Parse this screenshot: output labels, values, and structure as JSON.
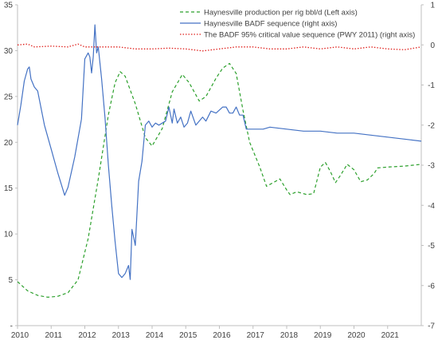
{
  "chart_data": {
    "type": "line",
    "x_axis": {
      "ticks": [
        "2010",
        "2011",
        "2012",
        "2013",
        "2014",
        "2015",
        "2016",
        "2017",
        "2018",
        "2019",
        "2020",
        "2021"
      ],
      "range": [
        2010,
        2022
      ]
    },
    "left_axis": {
      "ticks": [
        "35",
        "30",
        "25",
        "20",
        "15",
        "10",
        "5",
        "-"
      ],
      "range": [
        0,
        35
      ]
    },
    "right_axis": {
      "ticks": [
        "1",
        "0",
        "-1",
        "-2",
        "-3",
        "-4",
        "-5",
        "-6",
        "-7"
      ],
      "range": [
        -7,
        1
      ]
    },
    "grid": false,
    "legend_position": "top-right",
    "series": [
      {
        "name": "Haynesville production per rig bbl/d (Left axis)",
        "axis": "left",
        "color": "#2ca02c",
        "dash": "dashed",
        "points": [
          [
            2010.0,
            4.8
          ],
          [
            2010.3,
            3.8
          ],
          [
            2010.6,
            3.3
          ],
          [
            2010.9,
            3.1
          ],
          [
            2011.2,
            3.2
          ],
          [
            2011.5,
            3.6
          ],
          [
            2011.8,
            5.0
          ],
          [
            2012.1,
            9.5
          ],
          [
            2012.4,
            16.0
          ],
          [
            2012.7,
            23.0
          ],
          [
            2012.9,
            26.5
          ],
          [
            2013.05,
            27.7
          ],
          [
            2013.2,
            27.2
          ],
          [
            2013.5,
            24.2
          ],
          [
            2013.8,
            20.5
          ],
          [
            2014.0,
            19.6
          ],
          [
            2014.3,
            21.5
          ],
          [
            2014.6,
            25.5
          ],
          [
            2014.9,
            27.4
          ],
          [
            2015.1,
            26.5
          ],
          [
            2015.4,
            24.5
          ],
          [
            2015.6,
            25.0
          ],
          [
            2015.9,
            27.0
          ],
          [
            2016.1,
            28.1
          ],
          [
            2016.3,
            28.6
          ],
          [
            2016.5,
            27.5
          ],
          [
            2016.7,
            23.5
          ],
          [
            2016.9,
            20.0
          ],
          [
            2017.2,
            17.3
          ],
          [
            2017.4,
            15.2
          ],
          [
            2017.6,
            15.6
          ],
          [
            2017.8,
            16.0
          ],
          [
            2018.0,
            14.8
          ],
          [
            2018.1,
            14.3
          ],
          [
            2018.3,
            14.6
          ],
          [
            2018.6,
            14.3
          ],
          [
            2018.8,
            14.4
          ],
          [
            2019.0,
            17.3
          ],
          [
            2019.15,
            17.8
          ],
          [
            2019.3,
            16.8
          ],
          [
            2019.45,
            15.6
          ],
          [
            2019.6,
            16.4
          ],
          [
            2019.8,
            17.6
          ],
          [
            2020.0,
            17.0
          ],
          [
            2020.2,
            15.7
          ],
          [
            2020.4,
            15.9
          ],
          [
            2020.6,
            16.6
          ],
          [
            2020.7,
            17.2
          ],
          [
            2021.0,
            17.3
          ],
          [
            2021.5,
            17.4
          ],
          [
            2022.0,
            17.6
          ]
        ]
      },
      {
        "name": "Haynesville BADF sequence (right axis)",
        "axis": "right",
        "color": "#4472c4",
        "dash": "solid",
        "points": [
          [
            2010.0,
            -2.0
          ],
          [
            2010.1,
            -1.5
          ],
          [
            2010.2,
            -0.9
          ],
          [
            2010.3,
            -0.6
          ],
          [
            2010.35,
            -0.55
          ],
          [
            2010.4,
            -0.85
          ],
          [
            2010.5,
            -1.05
          ],
          [
            2010.6,
            -1.15
          ],
          [
            2010.8,
            -2.0
          ],
          [
            2011.0,
            -2.6
          ],
          [
            2011.2,
            -3.2
          ],
          [
            2011.4,
            -3.75
          ],
          [
            2011.5,
            -3.55
          ],
          [
            2011.7,
            -2.8
          ],
          [
            2011.9,
            -1.85
          ],
          [
            2012.0,
            -0.35
          ],
          [
            2012.1,
            -0.2
          ],
          [
            2012.15,
            -0.3
          ],
          [
            2012.2,
            -0.7
          ],
          [
            2012.25,
            -0.3
          ],
          [
            2012.3,
            0.5
          ],
          [
            2012.35,
            -0.2
          ],
          [
            2012.4,
            -0.05
          ],
          [
            2012.5,
            -0.85
          ],
          [
            2012.6,
            -1.8
          ],
          [
            2012.7,
            -3.0
          ],
          [
            2012.8,
            -4.0
          ],
          [
            2012.9,
            -4.9
          ],
          [
            2013.0,
            -5.7
          ],
          [
            2013.1,
            -5.8
          ],
          [
            2013.2,
            -5.7
          ],
          [
            2013.3,
            -5.5
          ],
          [
            2013.35,
            -5.85
          ],
          [
            2013.4,
            -4.6
          ],
          [
            2013.5,
            -5.0
          ],
          [
            2013.6,
            -3.4
          ],
          [
            2013.7,
            -2.9
          ],
          [
            2013.8,
            -2.0
          ],
          [
            2013.9,
            -1.9
          ],
          [
            2014.0,
            -2.05
          ],
          [
            2014.1,
            -1.95
          ],
          [
            2014.2,
            -2.0
          ],
          [
            2014.4,
            -1.9
          ],
          [
            2014.5,
            -1.55
          ],
          [
            2014.6,
            -1.95
          ],
          [
            2014.65,
            -1.6
          ],
          [
            2014.75,
            -1.95
          ],
          [
            2014.85,
            -1.8
          ],
          [
            2014.95,
            -2.05
          ],
          [
            2015.05,
            -1.95
          ],
          [
            2015.15,
            -1.65
          ],
          [
            2015.3,
            -2.0
          ],
          [
            2015.5,
            -1.8
          ],
          [
            2015.6,
            -1.9
          ],
          [
            2015.75,
            -1.65
          ],
          [
            2015.9,
            -1.7
          ],
          [
            2016.1,
            -1.55
          ],
          [
            2016.2,
            -1.55
          ],
          [
            2016.3,
            -1.7
          ],
          [
            2016.4,
            -1.7
          ],
          [
            2016.5,
            -1.55
          ],
          [
            2016.6,
            -1.75
          ],
          [
            2016.7,
            -1.75
          ],
          [
            2016.8,
            -2.1
          ],
          [
            2017.0,
            -2.1
          ],
          [
            2017.3,
            -2.1
          ],
          [
            2017.5,
            -2.05
          ],
          [
            2018.0,
            -2.1
          ],
          [
            2018.5,
            -2.15
          ],
          [
            2019.0,
            -2.15
          ],
          [
            2019.5,
            -2.2
          ],
          [
            2020.0,
            -2.2
          ],
          [
            2020.5,
            -2.25
          ],
          [
            2021.0,
            -2.3
          ],
          [
            2021.5,
            -2.35
          ],
          [
            2022.0,
            -2.4
          ]
        ]
      },
      {
        "name": "The BADF 95% critical value sequence (PWY 2011) (right axis)",
        "axis": "right",
        "color": "#e0211d",
        "dash": "dotted",
        "points": [
          [
            2010.0,
            0.0
          ],
          [
            2010.3,
            0.02
          ],
          [
            2010.5,
            -0.05
          ],
          [
            2011.0,
            -0.03
          ],
          [
            2011.5,
            -0.05
          ],
          [
            2011.8,
            0.02
          ],
          [
            2012.0,
            -0.05
          ],
          [
            2012.5,
            -0.05
          ],
          [
            2013.0,
            -0.05
          ],
          [
            2013.5,
            -0.1
          ],
          [
            2014.0,
            -0.1
          ],
          [
            2014.5,
            -0.08
          ],
          [
            2015.0,
            -0.1
          ],
          [
            2015.5,
            -0.15
          ],
          [
            2016.0,
            -0.1
          ],
          [
            2016.5,
            -0.05
          ],
          [
            2017.0,
            -0.05
          ],
          [
            2017.5,
            -0.1
          ],
          [
            2018.0,
            -0.1
          ],
          [
            2018.5,
            -0.05
          ],
          [
            2019.0,
            -0.1
          ],
          [
            2019.5,
            -0.05
          ],
          [
            2020.0,
            -0.1
          ],
          [
            2020.5,
            -0.05
          ],
          [
            2021.0,
            -0.1
          ],
          [
            2021.5,
            -0.12
          ],
          [
            2022.0,
            -0.05
          ]
        ]
      }
    ]
  }
}
